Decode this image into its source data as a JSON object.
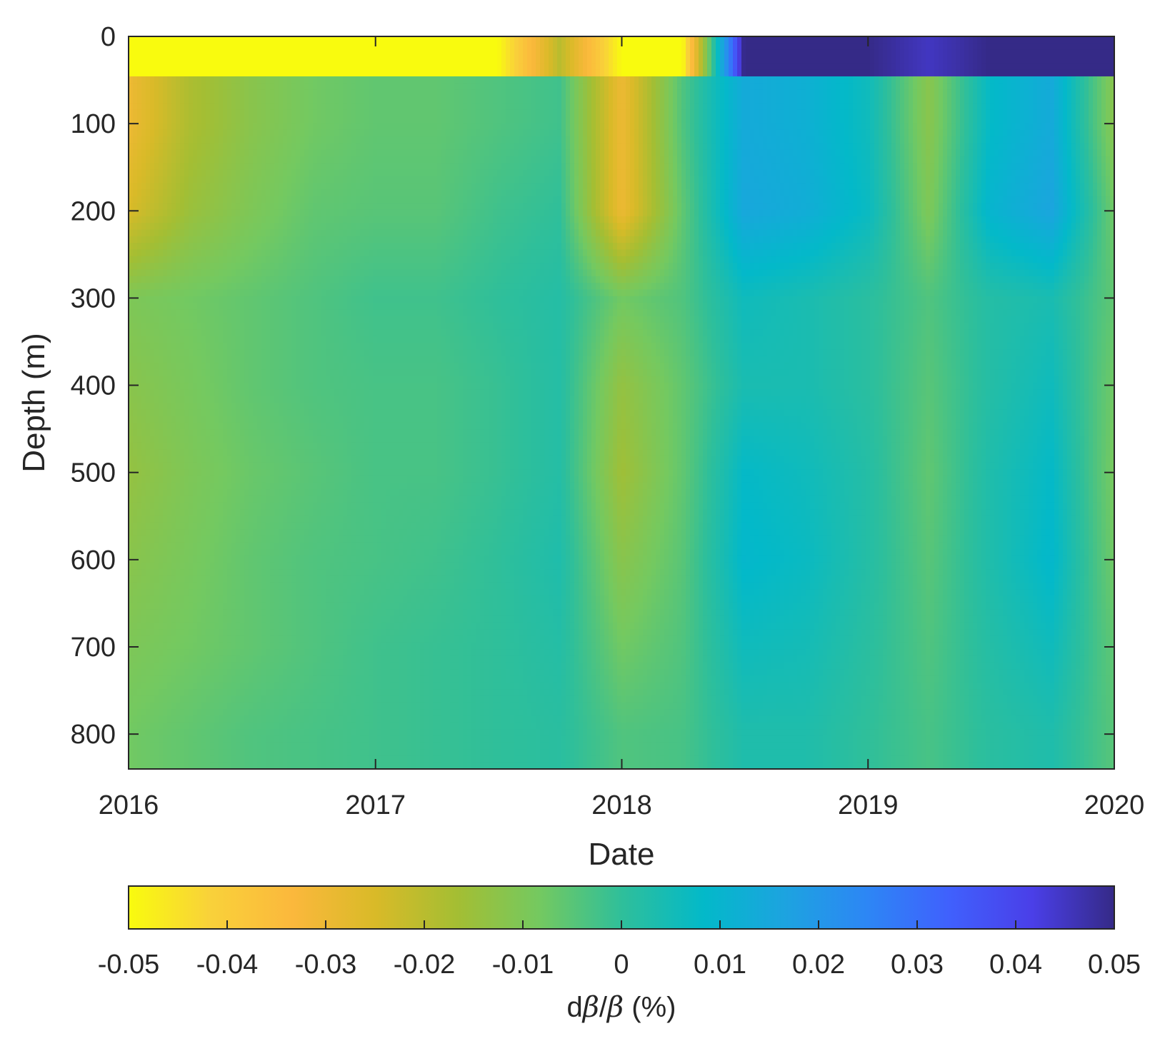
{
  "chart_data": {
    "type": "heatmap",
    "title": "",
    "xlabel": "Date",
    "ylabel": "Depth (m)",
    "x_ticks": [
      "2016",
      "2017",
      "2018",
      "2019",
      "2020"
    ],
    "xlim": [
      "2016-01-01",
      "2020-01-01"
    ],
    "y_ticks": [
      0,
      100,
      200,
      300,
      400,
      500,
      600,
      700,
      800
    ],
    "ylim": [
      0,
      840
    ],
    "y_reversed": true,
    "colorbar": {
      "label_prefix": "d",
      "label_beta1": "β",
      "label_slash": "/",
      "label_beta2": "β",
      "label_suffix": " (%)",
      "ticks": [
        "-0.05",
        "-0.04",
        "-0.03",
        "-0.02",
        "-0.01",
        "0",
        "0.01",
        "0.02",
        "0.03",
        "0.04",
        "0.05"
      ],
      "clim": [
        -0.05,
        0.05
      ],
      "orientation": "horizontal",
      "placement": "below",
      "colormap": "parula (reversed)",
      "colors": [
        "#f9fb0e",
        "#f9d13a",
        "#fbb83c",
        "#d9ba28",
        "#a4be33",
        "#74c960",
        "#2fbf9a",
        "#03b9c9",
        "#1da3e0",
        "#2d86f5",
        "#4060fd",
        "#4a3fe8",
        "#352a87"
      ]
    },
    "data": {
      "description_unit": "dβ/β (%)",
      "time_keys": [
        "2016-01-01",
        "2016-04-01",
        "2016-07-01",
        "2016-10-01",
        "2017-01-01",
        "2017-04-01",
        "2017-07-01",
        "2017-10-01",
        "2018-01-01",
        "2018-04-01",
        "2018-07-01",
        "2018-10-01",
        "2019-01-01",
        "2019-04-01",
        "2019-07-01",
        "2019-10-01",
        "2020-01-01"
      ],
      "depth_keys": [
        25,
        100,
        200,
        300,
        400,
        500,
        600,
        700,
        800
      ],
      "values": [
        [
          -0.05,
          -0.05,
          -0.05,
          -0.05,
          -0.05,
          -0.05,
          -0.05,
          -0.02,
          -0.05,
          -0.05,
          0.05,
          0.05,
          0.05,
          0.045,
          0.05,
          0.05,
          0.05
        ],
        [
          -0.03,
          -0.018,
          -0.012,
          -0.008,
          -0.006,
          -0.006,
          -0.004,
          -0.002,
          -0.03,
          -0.004,
          0.014,
          0.012,
          0.006,
          -0.012,
          0.008,
          0.014,
          -0.012
        ],
        [
          -0.025,
          -0.015,
          -0.01,
          -0.006,
          -0.005,
          -0.005,
          -0.002,
          0.0,
          -0.03,
          -0.006,
          0.015,
          0.013,
          0.007,
          -0.01,
          0.01,
          0.016,
          -0.008
        ],
        [
          -0.01,
          -0.008,
          -0.006,
          -0.004,
          -0.002,
          -0.002,
          0.0,
          0.002,
          -0.008,
          -0.004,
          0.006,
          0.004,
          0.001,
          -0.004,
          0.002,
          0.004,
          -0.006
        ],
        [
          -0.012,
          -0.009,
          -0.006,
          -0.004,
          -0.003,
          -0.003,
          -0.001,
          0.002,
          -0.014,
          -0.006,
          0.004,
          0.004,
          0.001,
          -0.005,
          0.002,
          0.006,
          -0.008
        ],
        [
          -0.014,
          -0.01,
          -0.007,
          -0.005,
          -0.003,
          -0.003,
          -0.001,
          0.002,
          -0.016,
          -0.006,
          0.008,
          0.006,
          0.002,
          -0.006,
          0.003,
          0.008,
          -0.009
        ],
        [
          -0.012,
          -0.009,
          -0.006,
          -0.004,
          -0.003,
          -0.002,
          0.0,
          0.003,
          -0.012,
          -0.005,
          0.009,
          0.007,
          0.002,
          -0.005,
          0.003,
          0.009,
          -0.008
        ],
        [
          -0.01,
          -0.008,
          -0.006,
          -0.004,
          -0.002,
          -0.001,
          0.0,
          0.002,
          -0.008,
          -0.004,
          0.006,
          0.005,
          0.001,
          -0.004,
          0.002,
          0.006,
          -0.006
        ],
        [
          -0.008,
          -0.006,
          -0.004,
          -0.003,
          -0.002,
          -0.001,
          0.0,
          0.001,
          -0.004,
          -0.003,
          0.003,
          0.003,
          0.0,
          -0.003,
          0.001,
          0.003,
          -0.005
        ]
      ]
    }
  }
}
